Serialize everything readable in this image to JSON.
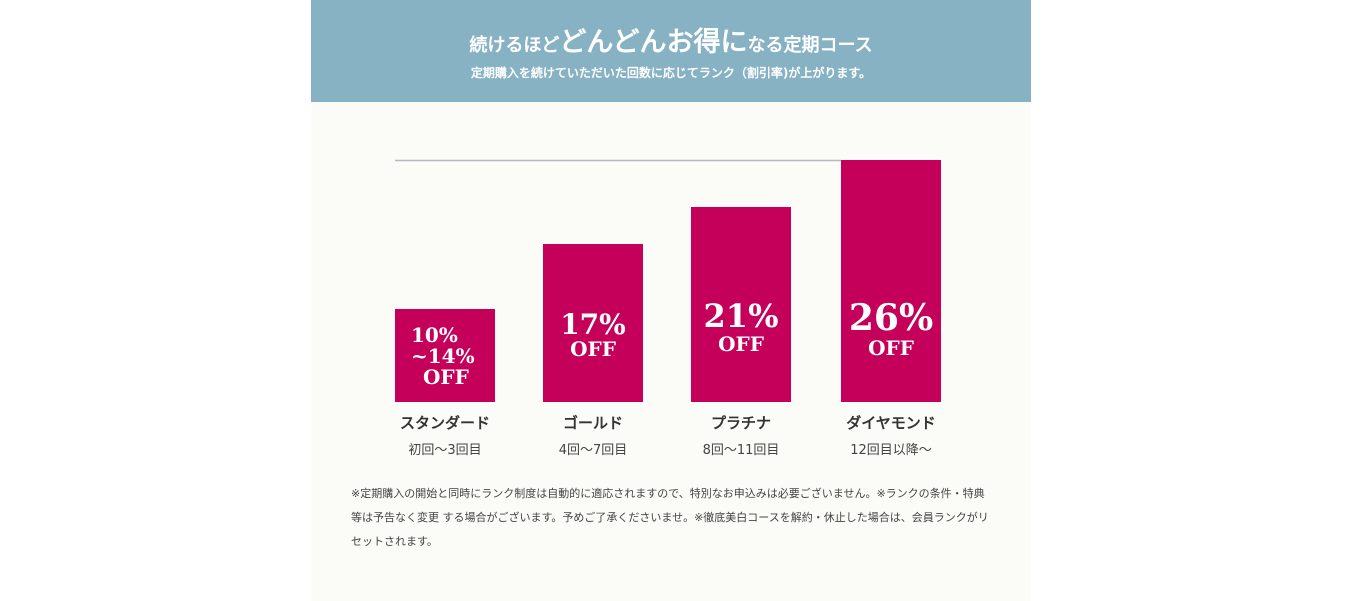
{
  "banner": {
    "title_pre": "続けるほど",
    "title_emph1": "どんどん",
    "title_emph2": "お得",
    "title_emph3": "に",
    "title_post": "なる定期コース",
    "subtitle": "定期購入を続けていただいた回数に応じてランク（割引率)が上がります。"
  },
  "colors": {
    "banner_bg": "#86b2c4",
    "panel_bg": "#fbfbf7",
    "bar": "#c4005a",
    "reference_line": "#b8b8c4"
  },
  "chart_data": {
    "type": "bar",
    "title": "",
    "xlabel": "",
    "ylabel": "",
    "grid": false,
    "legend": "none",
    "ylim": [
      0,
      26
    ],
    "categories": [
      "スタンダード",
      "ゴールド",
      "プラチナ",
      "ダイヤモンド"
    ],
    "category_ranges": [
      "初回〜3回目",
      "4回〜7回目",
      "8回〜11回目",
      "12回目以降〜"
    ],
    "values": [
      10,
      17,
      21,
      26
    ],
    "rate_labels": [
      "10%\n~14%",
      "17%",
      "21%",
      "26%"
    ],
    "off_label": "OFF"
  },
  "note": "※定期購入の開始と同時にランク制度は自動的に適応されますので、特別なお申込みは必要ございません。※ランクの条件・特典等は予告なく変更 する場合がございます。予めご了承くださいませ。※徹底美白コースを解約・休止した場合は、会員ランクがリセットされます。"
}
